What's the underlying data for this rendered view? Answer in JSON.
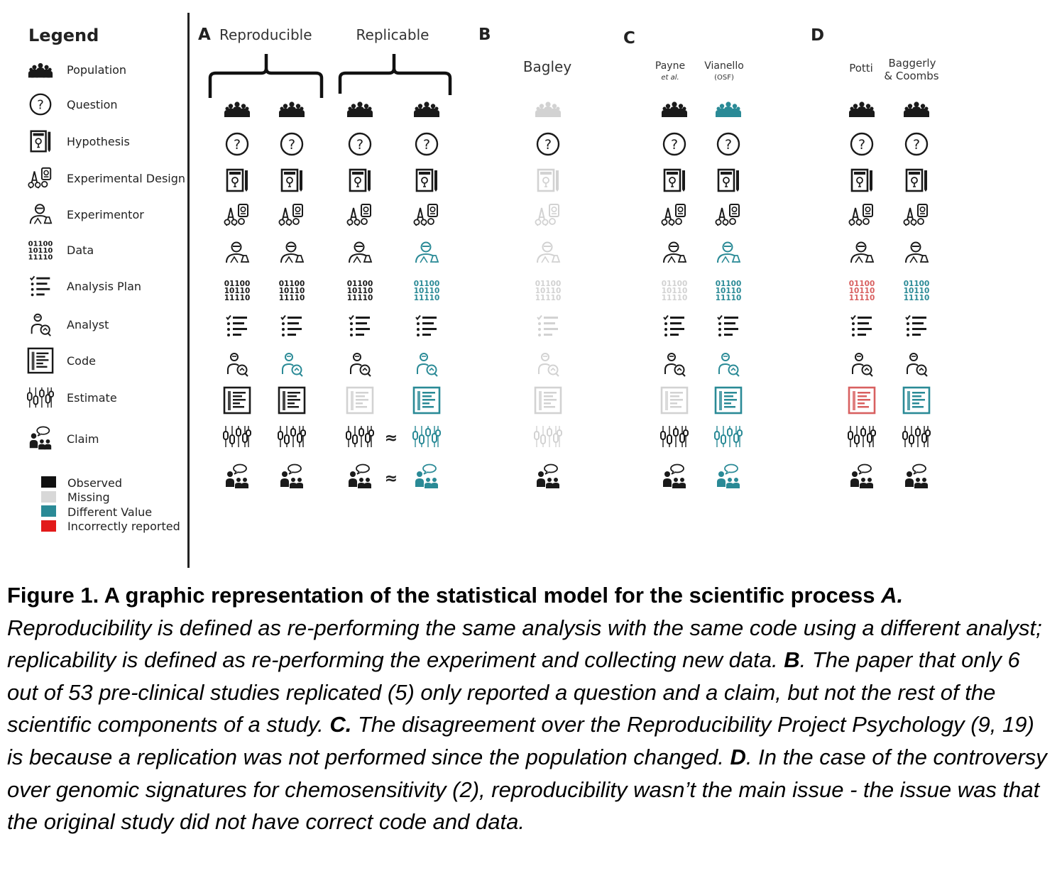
{
  "legend": {
    "title": "Legend",
    "items": [
      {
        "label": "Population",
        "icon": "population-icon"
      },
      {
        "label": "Question",
        "icon": "question-icon"
      },
      {
        "label": "Hypothesis",
        "icon": "hypothesis-icon"
      },
      {
        "label": "Experimental Design",
        "icon": "experimental-design-icon"
      },
      {
        "label": "Experimentor",
        "icon": "experimentor-icon"
      },
      {
        "label": "Data",
        "icon": "data-icon"
      },
      {
        "label": "Analysis Plan",
        "icon": "analysis-plan-icon"
      },
      {
        "label": "Analyst",
        "icon": "analyst-icon"
      },
      {
        "label": "Code",
        "icon": "code-icon"
      },
      {
        "label": "Estimate",
        "icon": "estimate-icon"
      },
      {
        "label": "Claim",
        "icon": "claim-icon"
      }
    ],
    "status": [
      {
        "label": "Observed",
        "color": "#111111"
      },
      {
        "label": "Missing",
        "color": "#d8d8d8"
      },
      {
        "label": "Different Value",
        "color": "#2a8a96"
      },
      {
        "label": "Incorrectly reported",
        "color": "#e21a1a"
      }
    ]
  },
  "colors": {
    "K": "#1a1a1a",
    "G": "#d2d2d2",
    "T": "#2a8a96",
    "R": "#d86060"
  },
  "data_glyph": "01100\n10110\n11110",
  "panels": {
    "A": {
      "letter": "A",
      "reproducible": "Reproducible",
      "replicable": "Replicable"
    },
    "B": {
      "letter": "B",
      "col": "Bagley"
    },
    "C": {
      "letter": "C",
      "col1_line1": "Payne",
      "col1_line2": "et al.",
      "col2_line1": "Vianello",
      "col2_line2": "(OSF)"
    },
    "D": {
      "letter": "D",
      "col1": "Potti",
      "col2_line1": "Baggerly",
      "col2_line2": "& Coombs"
    }
  },
  "approx_symbol": "≈",
  "columns": [
    {
      "id": "A-repro-1",
      "colors": "KKKKKKKKKKK"
    },
    {
      "id": "A-repro-2",
      "colors": "KKKKKKKTKKK"
    },
    {
      "id": "A-repl-1",
      "colors": "KKKKKKKKGKK"
    },
    {
      "id": "A-repl-2",
      "colors": "KKKKTTKTTTT"
    },
    {
      "id": "B-bagley",
      "colors": "GKGGGGGGGGK"
    },
    {
      "id": "C-payne",
      "colors": "KKKKKGKKGKK"
    },
    {
      "id": "C-vianello",
      "colors": "TKKKTTKTTTT"
    },
    {
      "id": "D-potti",
      "colors": "KKKKKRKKRKK"
    },
    {
      "id": "D-baggerly",
      "colors": "KKKKKTKKTKK"
    }
  ],
  "caption": {
    "figure_label": "Figure 1.",
    "title": " A graphic representation of the statistical model for the scientific process ",
    "label_A": "A.",
    "text_A": " Reproducibility is defined as re-performing the same analysis with the same code using a different analyst; replicability is defined as re-performing the experiment and collecting new data. ",
    "label_B": "B",
    "text_B": ". The paper that only 6 out of 53 pre-clinical studies replicated (5) only reported a question and a claim, but not the rest of the scientific components of a study. ",
    "label_C": "C.",
    "text_C": " The disagreement over the Reproducibility Project Psychology (9, 19) is because a replication was not performed since the population changed. ",
    "label_D": "D",
    "text_D": ". In the case of the controversy over genomic signatures for chemosensitivity (2), reproducibility wasn’t the main issue - the issue was that the original study did not have correct code and data."
  }
}
